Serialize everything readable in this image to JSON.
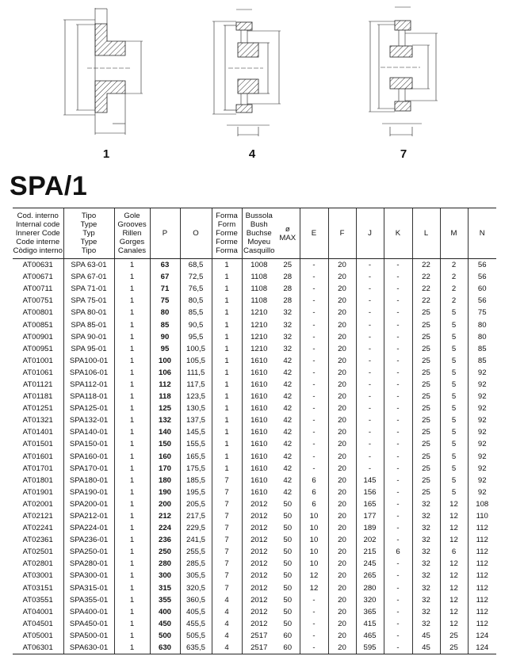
{
  "figures": [
    {
      "label": "1",
      "dims": [
        "F",
        "O",
        "P",
        "N",
        "M",
        "L"
      ]
    },
    {
      "label": "4",
      "dims": [
        "F",
        "O",
        "P",
        "N",
        "J",
        "K",
        "M",
        "L"
      ]
    },
    {
      "label": "7",
      "dims": [
        "F",
        "O",
        "P",
        "N",
        "J",
        "E",
        "K",
        "M",
        "L"
      ]
    }
  ],
  "title": "SPA/1",
  "table": {
    "headers": [
      [
        "Cod. interno",
        "Internal code",
        "Innerer Code",
        "Code interne",
        "Còdigo interno"
      ],
      [
        "Tipo",
        "Type",
        "Typ",
        "Type",
        "Tipo"
      ],
      [
        "Gole",
        "Grooves",
        "Rillen",
        "Gorges",
        "Canales"
      ],
      [
        "P"
      ],
      [
        "O"
      ],
      [
        "Forma",
        "Form",
        "Forme",
        "Forme",
        "Forma"
      ],
      [
        "Bussola",
        "Bush",
        "Buchse",
        "Moyeu",
        "Casquillo"
      ],
      [
        "ø",
        "MAX"
      ],
      [
        "E"
      ],
      [
        "F"
      ],
      [
        "J"
      ],
      [
        "K"
      ],
      [
        "L"
      ],
      [
        "M"
      ],
      [
        "N"
      ]
    ],
    "rows": [
      [
        "AT00631",
        "SPA 63-01",
        "1",
        "63",
        "68,5",
        "1",
        "1008",
        "25",
        "-",
        "20",
        "-",
        "-",
        "22",
        "2",
        "56"
      ],
      [
        "AT00671",
        "SPA 67-01",
        "1",
        "67",
        "72,5",
        "1",
        "1108",
        "28",
        "-",
        "20",
        "-",
        "-",
        "22",
        "2",
        "56"
      ],
      [
        "AT00711",
        "SPA 71-01",
        "1",
        "71",
        "76,5",
        "1",
        "1108",
        "28",
        "-",
        "20",
        "-",
        "-",
        "22",
        "2",
        "60"
      ],
      [
        "AT00751",
        "SPA 75-01",
        "1",
        "75",
        "80,5",
        "1",
        "1108",
        "28",
        "-",
        "20",
        "-",
        "-",
        "22",
        "2",
        "56"
      ],
      [
        "AT00801",
        "SPA 80-01",
        "1",
        "80",
        "85,5",
        "1",
        "1210",
        "32",
        "-",
        "20",
        "-",
        "-",
        "25",
        "5",
        "75"
      ],
      [
        "AT00851",
        "SPA 85-01",
        "1",
        "85",
        "90,5",
        "1",
        "1210",
        "32",
        "-",
        "20",
        "-",
        "-",
        "25",
        "5",
        "80"
      ],
      [
        "AT00901",
        "SPA 90-01",
        "1",
        "90",
        "95,5",
        "1",
        "1210",
        "32",
        "-",
        "20",
        "-",
        "-",
        "25",
        "5",
        "80"
      ],
      [
        "AT00951",
        "SPA 95-01",
        "1",
        "95",
        "100,5",
        "1",
        "1210",
        "32",
        "-",
        "20",
        "-",
        "-",
        "25",
        "5",
        "85"
      ],
      [
        "AT01001",
        "SPA100-01",
        "1",
        "100",
        "105,5",
        "1",
        "1610",
        "42",
        "-",
        "20",
        "-",
        "-",
        "25",
        "5",
        "85"
      ],
      [
        "AT01061",
        "SPA106-01",
        "1",
        "106",
        "111,5",
        "1",
        "1610",
        "42",
        "-",
        "20",
        "-",
        "-",
        "25",
        "5",
        "92"
      ],
      [
        "AT01121",
        "SPA112-01",
        "1",
        "112",
        "117,5",
        "1",
        "1610",
        "42",
        "-",
        "20",
        "-",
        "-",
        "25",
        "5",
        "92"
      ],
      [
        "AT01181",
        "SPA118-01",
        "1",
        "118",
        "123,5",
        "1",
        "1610",
        "42",
        "-",
        "20",
        "-",
        "-",
        "25",
        "5",
        "92"
      ],
      [
        "AT01251",
        "SPA125-01",
        "1",
        "125",
        "130,5",
        "1",
        "1610",
        "42",
        "-",
        "20",
        "-",
        "-",
        "25",
        "5",
        "92"
      ],
      [
        "AT01321",
        "SPA132-01",
        "1",
        "132",
        "137,5",
        "1",
        "1610",
        "42",
        "-",
        "20",
        "-",
        "-",
        "25",
        "5",
        "92"
      ],
      [
        "AT01401",
        "SPA140-01",
        "1",
        "140",
        "145,5",
        "1",
        "1610",
        "42",
        "-",
        "20",
        "-",
        "-",
        "25",
        "5",
        "92"
      ],
      [
        "AT01501",
        "SPA150-01",
        "1",
        "150",
        "155,5",
        "1",
        "1610",
        "42",
        "-",
        "20",
        "-",
        "-",
        "25",
        "5",
        "92"
      ],
      [
        "AT01601",
        "SPA160-01",
        "1",
        "160",
        "165,5",
        "1",
        "1610",
        "42",
        "-",
        "20",
        "-",
        "-",
        "25",
        "5",
        "92"
      ],
      [
        "AT01701",
        "SPA170-01",
        "1",
        "170",
        "175,5",
        "1",
        "1610",
        "42",
        "-",
        "20",
        "-",
        "-",
        "25",
        "5",
        "92"
      ],
      [
        "AT01801",
        "SPA180-01",
        "1",
        "180",
        "185,5",
        "7",
        "1610",
        "42",
        "6",
        "20",
        "145",
        "-",
        "25",
        "5",
        "92"
      ],
      [
        "AT01901",
        "SPA190-01",
        "1",
        "190",
        "195,5",
        "7",
        "1610",
        "42",
        "6",
        "20",
        "156",
        "-",
        "25",
        "5",
        "92"
      ],
      [
        "AT02001",
        "SPA200-01",
        "1",
        "200",
        "205,5",
        "7",
        "2012",
        "50",
        "6",
        "20",
        "165",
        "-",
        "32",
        "12",
        "108"
      ],
      [
        "AT02121",
        "SPA212-01",
        "1",
        "212",
        "217,5",
        "7",
        "2012",
        "50",
        "10",
        "20",
        "177",
        "-",
        "32",
        "12",
        "110"
      ],
      [
        "AT02241",
        "SPA224-01",
        "1",
        "224",
        "229,5",
        "7",
        "2012",
        "50",
        "10",
        "20",
        "189",
        "-",
        "32",
        "12",
        "112"
      ],
      [
        "AT02361",
        "SPA236-01",
        "1",
        "236",
        "241,5",
        "7",
        "2012",
        "50",
        "10",
        "20",
        "202",
        "-",
        "32",
        "12",
        "112"
      ],
      [
        "AT02501",
        "SPA250-01",
        "1",
        "250",
        "255,5",
        "7",
        "2012",
        "50",
        "10",
        "20",
        "215",
        "6",
        "32",
        "6",
        "112"
      ],
      [
        "AT02801",
        "SPA280-01",
        "1",
        "280",
        "285,5",
        "7",
        "2012",
        "50",
        "10",
        "20",
        "245",
        "-",
        "32",
        "12",
        "112"
      ],
      [
        "AT03001",
        "SPA300-01",
        "1",
        "300",
        "305,5",
        "7",
        "2012",
        "50",
        "12",
        "20",
        "265",
        "-",
        "32",
        "12",
        "112"
      ],
      [
        "AT03151",
        "SPA315-01",
        "1",
        "315",
        "320,5",
        "7",
        "2012",
        "50",
        "12",
        "20",
        "280",
        "-",
        "32",
        "12",
        "112"
      ],
      [
        "AT03551",
        "SPA355-01",
        "1",
        "355",
        "360,5",
        "4",
        "2012",
        "50",
        "-",
        "20",
        "320",
        "-",
        "32",
        "12",
        "112"
      ],
      [
        "AT04001",
        "SPA400-01",
        "1",
        "400",
        "405,5",
        "4",
        "2012",
        "50",
        "-",
        "20",
        "365",
        "-",
        "32",
        "12",
        "112"
      ],
      [
        "AT04501",
        "SPA450-01",
        "1",
        "450",
        "455,5",
        "4",
        "2012",
        "50",
        "-",
        "20",
        "415",
        "-",
        "32",
        "12",
        "112"
      ],
      [
        "AT05001",
        "SPA500-01",
        "1",
        "500",
        "505,5",
        "4",
        "2517",
        "60",
        "-",
        "20",
        "465",
        "-",
        "45",
        "25",
        "124"
      ],
      [
        "AT06301",
        "SPA630-01",
        "1",
        "630",
        "635,5",
        "4",
        "2517",
        "60",
        "-",
        "20",
        "595",
        "-",
        "45",
        "25",
        "124"
      ]
    ]
  }
}
